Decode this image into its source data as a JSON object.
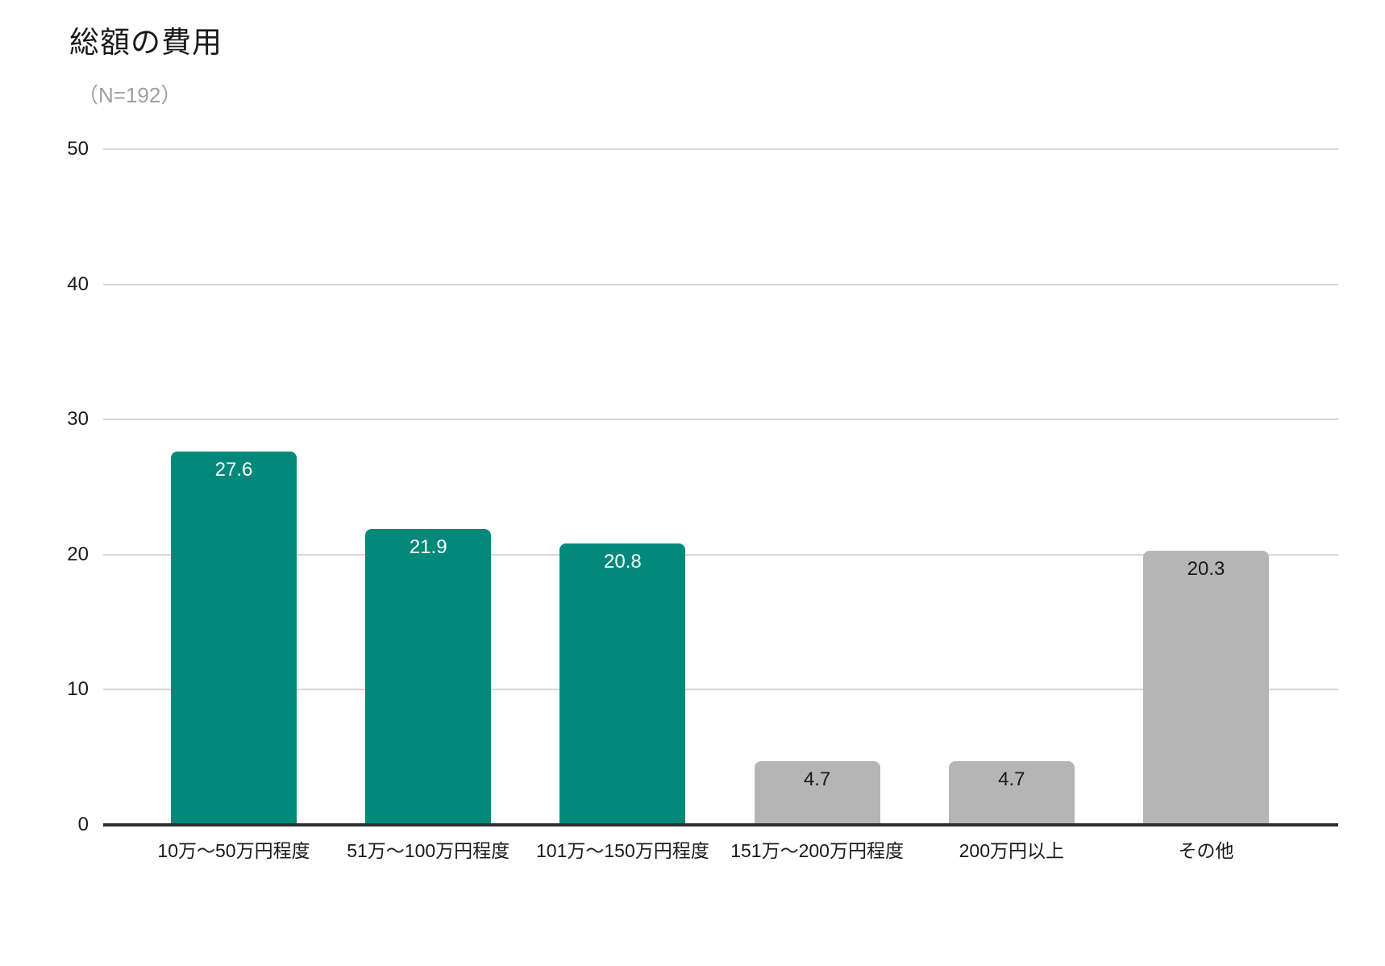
{
  "chart": {
    "title": "総額の費用",
    "subtitle": "（N=192）"
  },
  "chart_data": {
    "type": "bar",
    "title": "総額の費用",
    "subtitle": "（N=192）",
    "categories": [
      "10万〜50万円程度",
      "51万〜100万円程度",
      "101万〜150万円程度",
      "151万〜200万円程度",
      "200万円以上",
      "その他"
    ],
    "values": [
      27.6,
      21.9,
      20.8,
      4.7,
      4.7,
      20.3
    ],
    "bar_colors": [
      "teal",
      "teal",
      "teal",
      "gray",
      "gray",
      "gray"
    ],
    "value_label_colors": [
      "white",
      "white",
      "white",
      "dark",
      "dark",
      "dark"
    ],
    "ylim": [
      0,
      50
    ],
    "yticks": [
      0,
      10,
      20,
      30,
      40,
      50
    ],
    "grid": true,
    "legend": "none",
    "colors": {
      "teal": "#00897b",
      "gray": "#b5b5b5",
      "gridline": "#d6d6d6",
      "axis_line": "#2e2e2e",
      "value_label_white": "#ffffff",
      "value_label_dark": "#1a1a1a"
    }
  }
}
